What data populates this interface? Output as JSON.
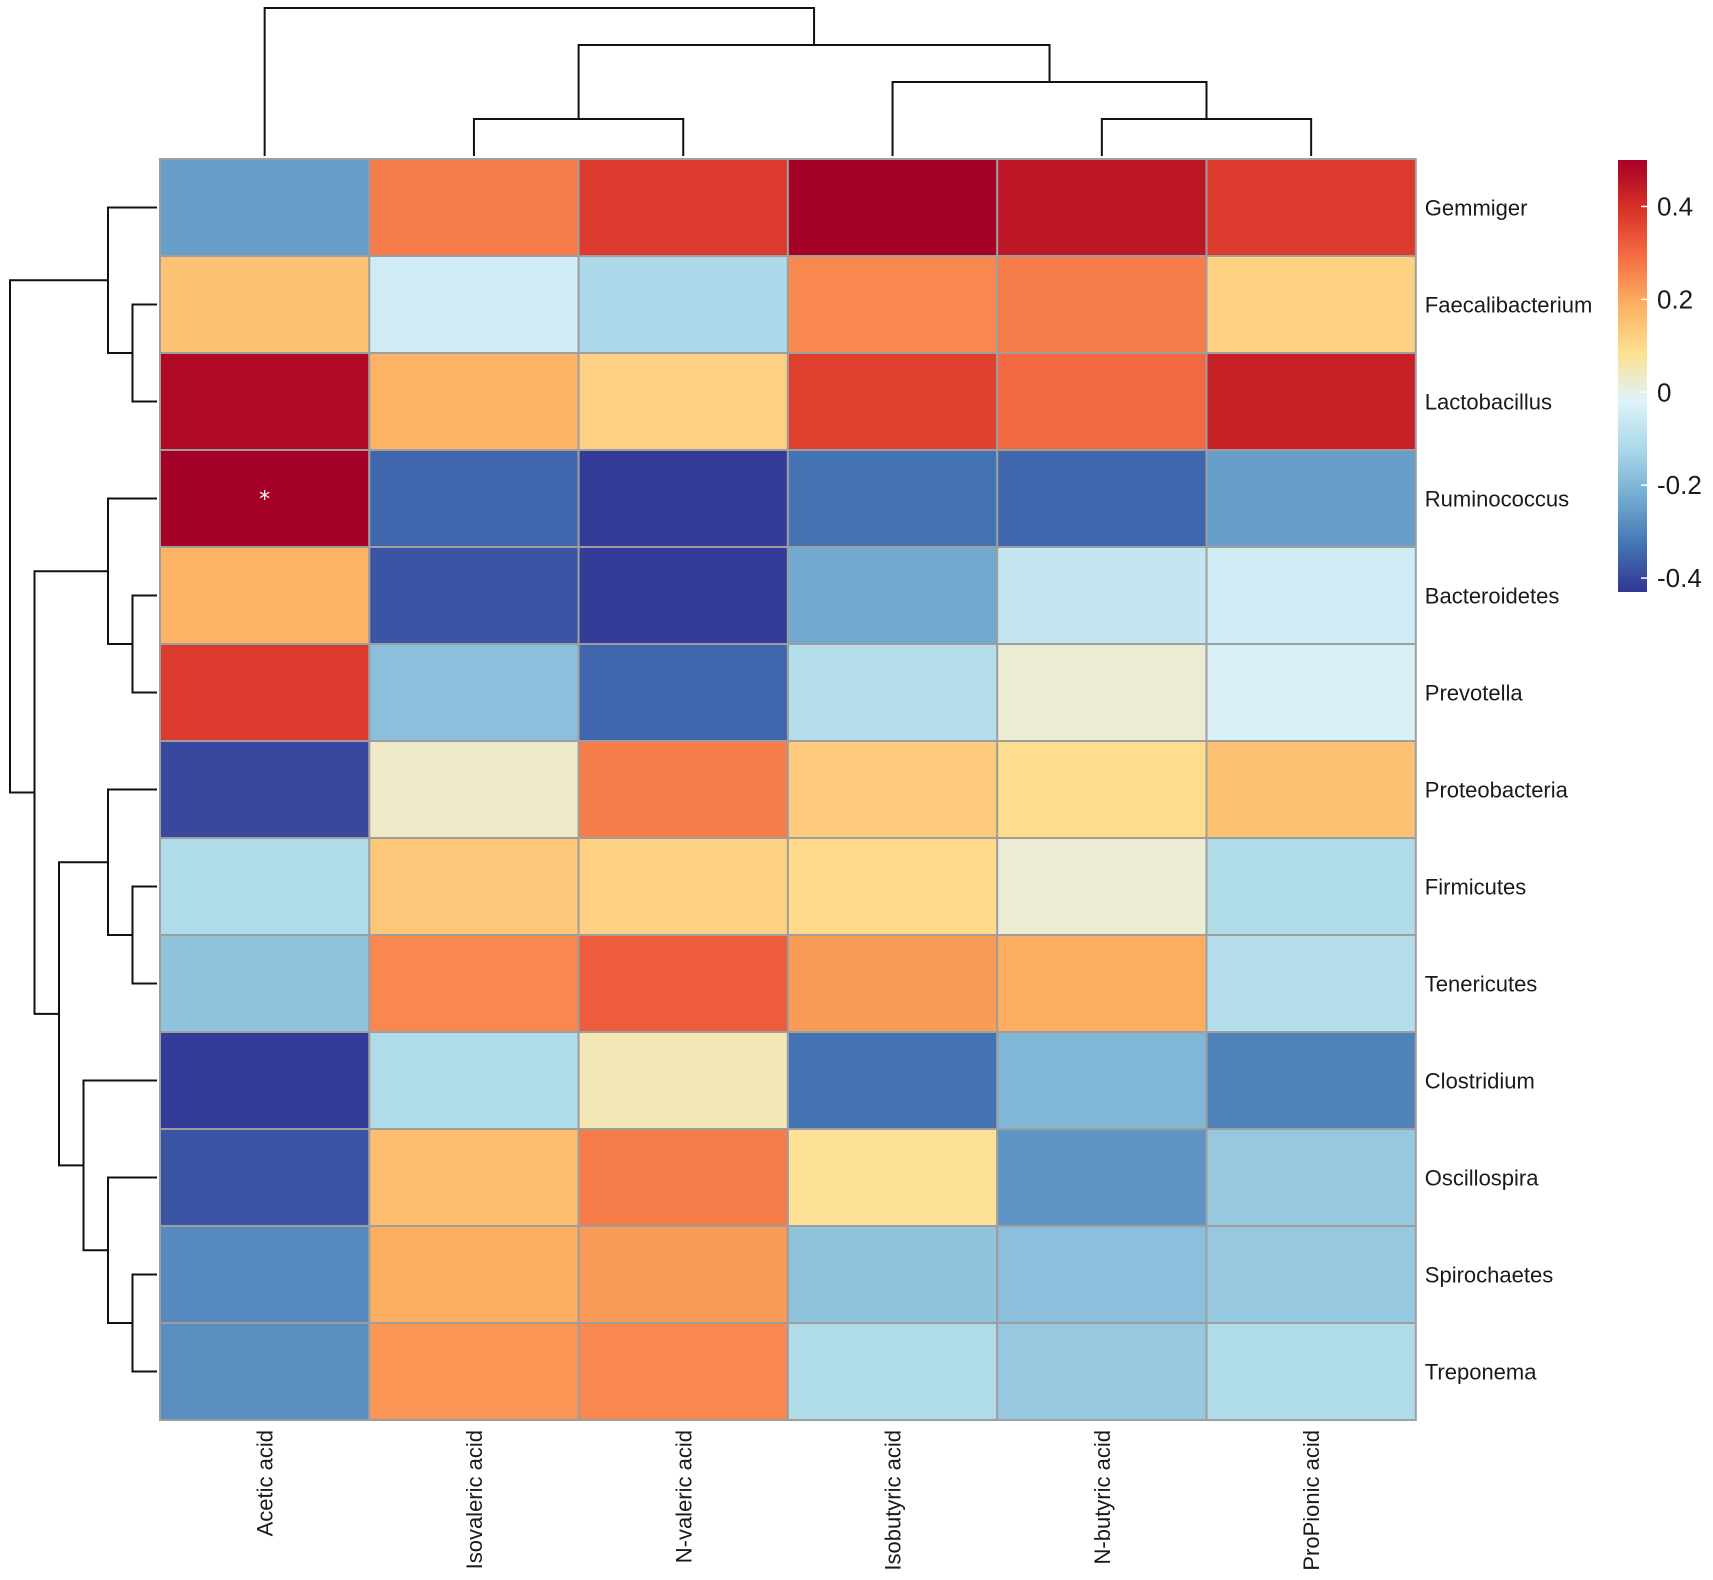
{
  "chart_data": {
    "type": "heatmap",
    "title": "",
    "columns": [
      "Acetic acid",
      "Isovaleric acid",
      "N-valeric acid",
      "Isobutyric acid",
      "N-butyric acid",
      "ProPionic acid"
    ],
    "rows": [
      "Gemmiger",
      "Faecalibacterium",
      "Lactobacillus",
      "Ruminococcus",
      "Bacteroidetes",
      "Prevotella",
      "Proteobacteria",
      "Firmicutes",
      "Tenericutes",
      "Clostridium",
      "Oscillospira",
      "Spirochaetes",
      "Treponema"
    ],
    "values": [
      [
        -0.25,
        0.27,
        0.38,
        0.5,
        0.45,
        0.38
      ],
      [
        0.15,
        -0.05,
        -0.12,
        0.25,
        0.27,
        0.12
      ],
      [
        0.48,
        0.18,
        0.12,
        0.37,
        0.3,
        0.43
      ],
      [
        0.5,
        -0.35,
        -0.42,
        -0.33,
        -0.35,
        -0.25
      ],
      [
        0.18,
        -0.38,
        -0.42,
        -0.23,
        -0.07,
        -0.05
      ],
      [
        0.38,
        -0.18,
        -0.35,
        -0.1,
        0.02,
        -0.03
      ],
      [
        -0.4,
        0.03,
        0.27,
        0.13,
        0.09,
        0.15
      ],
      [
        -0.11,
        0.14,
        0.12,
        0.1,
        0.02,
        -0.11
      ],
      [
        -0.17,
        0.25,
        0.32,
        0.22,
        0.19,
        -0.1
      ],
      [
        -0.42,
        -0.11,
        0.05,
        -0.33,
        -0.2,
        -0.3
      ],
      [
        -0.38,
        0.16,
        0.27,
        0.08,
        -0.27,
        -0.16
      ],
      [
        -0.29,
        0.19,
        0.22,
        -0.17,
        -0.18,
        -0.16
      ],
      [
        -0.28,
        0.23,
        0.25,
        -0.11,
        -0.16,
        -0.11
      ]
    ],
    "significance": [
      [
        "",
        "",
        "",
        "",
        "",
        ""
      ],
      [
        "",
        "",
        "",
        "",
        "",
        ""
      ],
      [
        "",
        "",
        "",
        "",
        "",
        ""
      ],
      [
        "*",
        "",
        "",
        "",
        "",
        ""
      ],
      [
        "",
        "",
        "",
        "",
        "",
        ""
      ],
      [
        "",
        "",
        "",
        "",
        "",
        ""
      ],
      [
        "",
        "",
        "",
        "",
        "",
        ""
      ],
      [
        "",
        "",
        "",
        "",
        "",
        ""
      ],
      [
        "",
        "",
        "",
        "",
        "",
        ""
      ],
      [
        "",
        "",
        "",
        "",
        "",
        ""
      ],
      [
        "",
        "",
        "",
        "",
        "",
        ""
      ],
      [
        "",
        "",
        "",
        "",
        "",
        ""
      ],
      [
        "",
        "",
        "",
        "",
        "",
        ""
      ]
    ],
    "color_scale": {
      "range": [
        -0.43,
        0.5
      ],
      "stops": [
        "#313695",
        "#4575b4",
        "#74add1",
        "#abd9e9",
        "#e0f3f8",
        "#fee090",
        "#fdae61",
        "#f46d43",
        "#d73027",
        "#a50026"
      ],
      "legend_ticks": [
        0.4,
        0.2,
        0,
        -0.2,
        -0.4
      ],
      "legend_tick_labels": [
        "0.4",
        "0.2",
        "0",
        "-0.2",
        "-0.4"
      ]
    },
    "col_dendrogram": [
      [
        1,
        2
      ],
      [
        4,
        5
      ],
      [
        3,
        [
          4,
          5
        ]
      ],
      [
        [
          1,
          2
        ],
        [
          3,
          [
            4,
            5
          ]
        ]
      ],
      [
        0,
        [
          [
            1,
            2
          ],
          [
            3,
            [
              4,
              5
            ]
          ]
        ]
      ]
    ],
    "row_dendrogram": "((Gemmiger,(Faecalibacterium,Lactobacillus)),((Ruminococcus,(Bacteroidetes,Prevotella)),((Proteobacteria,(Firmicutes,Tenericutes)),(Clostridium,(Oscillospira,(Spirochaetes,Treponema))))))",
    "xlabel": "",
    "ylabel": ""
  }
}
